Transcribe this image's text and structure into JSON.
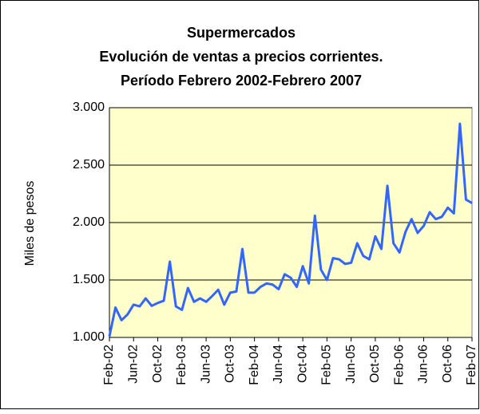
{
  "chart_data": {
    "type": "line",
    "title": [
      "Supermercados",
      "Evolución de ventas a precios corrientes.",
      "Período Febrero 2002-Febrero 2007"
    ],
    "y_label": "Miles de pesos",
    "categories": [
      "Feb-02",
      null,
      null,
      null,
      "Jun-02",
      null,
      null,
      null,
      "Oct-02",
      null,
      null,
      null,
      "Feb-03",
      null,
      null,
      null,
      "Jun-03",
      null,
      null,
      null,
      "Oct-03",
      null,
      null,
      null,
      "Feb-04",
      null,
      null,
      null,
      "Jun-04",
      null,
      null,
      null,
      "Oct-04",
      null,
      null,
      null,
      "Feb-05",
      null,
      null,
      null,
      "Jun-05",
      null,
      null,
      null,
      "Oct-05",
      null,
      null,
      null,
      "Feb-06",
      null,
      null,
      null,
      "Jun-06",
      null,
      null,
      null,
      "Oct-06",
      null,
      null,
      null,
      "Feb-07"
    ],
    "values": [
      1010,
      1260,
      1150,
      1200,
      1285,
      1270,
      1340,
      1275,
      1300,
      1320,
      1660,
      1270,
      1240,
      1430,
      1310,
      1340,
      1310,
      1360,
      1415,
      1285,
      1390,
      1400,
      1770,
      1390,
      1390,
      1440,
      1470,
      1460,
      1420,
      1550,
      1520,
      1440,
      1620,
      1470,
      2060,
      1590,
      1500,
      1690,
      1680,
      1640,
      1650,
      1820,
      1710,
      1680,
      1880,
      1770,
      2320,
      1820,
      1740,
      1920,
      2030,
      1910,
      1970,
      2090,
      2030,
      2050,
      2130,
      2080,
      2860,
      2200,
      2170
    ],
    "color": "#3366ff",
    "ylim": [
      1000,
      3000
    ],
    "yticks": [
      {
        "value": 1000,
        "label": "1.000"
      },
      {
        "value": 1500,
        "label": "1.500"
      },
      {
        "value": 2000,
        "label": "2.000"
      },
      {
        "value": 2500,
        "label": "2.500"
      },
      {
        "value": 3000,
        "label": "3.000"
      }
    ],
    "grid": true
  }
}
